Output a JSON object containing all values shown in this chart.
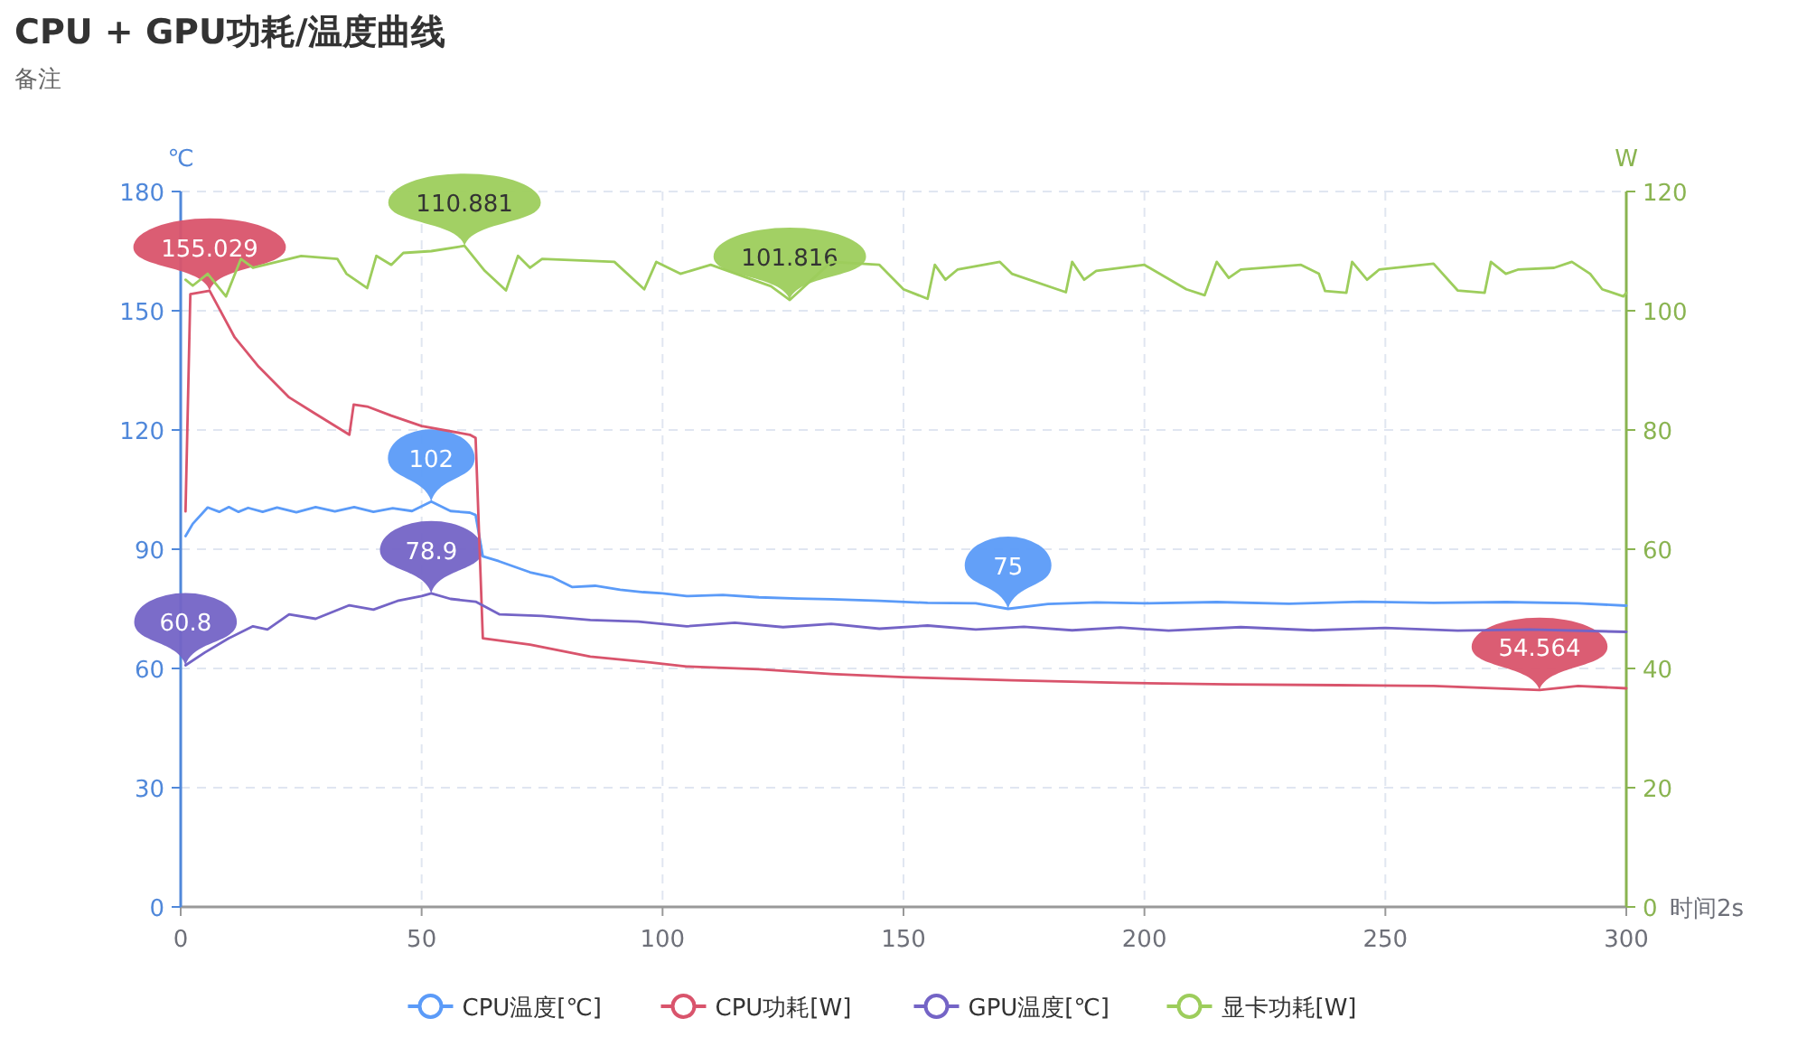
{
  "chart_data": {
    "type": "line",
    "title": "CPU + GPU功耗/温度曲线",
    "subtitle": "备注",
    "xlabel": "时间2s",
    "ylabel": "℃",
    "y2label": "W",
    "xlim": [
      0,
      300
    ],
    "xticks": [
      0,
      50,
      100,
      150,
      200,
      250,
      300
    ],
    "ylim": [
      0,
      180
    ],
    "yticks": [
      0,
      30,
      60,
      90,
      120,
      150,
      180
    ],
    "y2lim": [
      0,
      120
    ],
    "y2ticks": [
      0,
      20,
      40,
      60,
      80,
      100,
      120
    ],
    "grid": true,
    "legend": "bottom",
    "series": [
      {
        "name": "CPU温度[℃]",
        "color": "#5b9bf8",
        "axis": "y",
        "x": [
          1,
          2.5,
          5.6,
          8,
          10,
          12,
          14,
          17,
          20,
          24,
          28,
          32,
          36,
          40,
          44,
          48,
          52,
          56,
          60,
          61.2,
          62.7,
          66,
          72.5,
          77,
          81.2,
          86,
          91.2,
          96,
          100,
          105,
          112.5,
          120,
          128,
          135,
          145,
          155,
          165,
          171.7,
          180,
          190,
          200,
          215,
          230,
          245,
          260,
          275,
          290,
          300
        ],
        "values": [
          93.3,
          96.4,
          100.5,
          99.4,
          100.6,
          99.4,
          100.4,
          99.4,
          100.5,
          99.3,
          100.6,
          99.5,
          100.6,
          99.4,
          100.3,
          99.6,
          102,
          99.6,
          99.2,
          98.6,
          88.2,
          87,
          84.2,
          83,
          80.5,
          80.8,
          79.8,
          79.2,
          78.9,
          78.2,
          78.5,
          77.9,
          77.6,
          77.4,
          77,
          76.5,
          76.4,
          75,
          76.2,
          76.6,
          76.4,
          76.7,
          76.3,
          76.8,
          76.5,
          76.7,
          76.4,
          75.8
        ],
        "value_labels": [
          null,
          null,
          null,
          null,
          null,
          null,
          null,
          null,
          null,
          null,
          null,
          null,
          null,
          null,
          null,
          null,
          "102",
          null,
          null,
          null,
          null,
          null,
          null,
          null,
          null,
          null,
          null,
          null,
          null,
          null,
          null,
          null,
          null,
          null,
          null,
          null,
          null,
          "75",
          null,
          null,
          null,
          null,
          null,
          null,
          null,
          null,
          null,
          null
        ]
      },
      {
        "name": "CPU功耗[W]",
        "color": "#d9546c",
        "axis": "y",
        "x": [
          1,
          2,
          6,
          11.2,
          16.2,
          22.5,
          27.4,
          35,
          35.9,
          38.7,
          43.7,
          50,
          60,
          61.2,
          62.7,
          72.5,
          85,
          97.5,
          105,
          120,
          135,
          150,
          172.5,
          195,
          217.5,
          240,
          260,
          282,
          290,
          300
        ],
        "values": [
          99.5,
          154.2,
          155.029,
          143.3,
          135.9,
          128.2,
          124.5,
          118.8,
          126.4,
          125.9,
          123.6,
          121,
          118.8,
          118,
          67.6,
          66,
          63,
          61.5,
          60.5,
          59.8,
          58.6,
          57.8,
          57,
          56.4,
          56,
          55.8,
          55.6,
          54.564,
          55.6,
          55
        ],
        "value_labels": [
          null,
          null,
          "155.029",
          null,
          null,
          null,
          null,
          null,
          null,
          null,
          null,
          null,
          null,
          null,
          null,
          null,
          null,
          null,
          null,
          null,
          null,
          null,
          null,
          null,
          null,
          null,
          null,
          "54.564",
          null,
          null
        ]
      },
      {
        "name": "GPU温度[℃]",
        "color": "#7464c6",
        "axis": "y",
        "x": [
          1,
          5,
          10,
          15,
          18,
          22.5,
          28,
          35,
          40,
          45,
          50,
          52,
          56,
          61.2,
          66.2,
          75,
          85,
          95,
          105,
          115,
          125,
          135,
          145,
          155,
          165,
          175,
          185,
          195,
          205,
          220,
          235,
          250,
          265,
          280,
          300
        ],
        "values": [
          60.8,
          64,
          67.6,
          70.6,
          69.8,
          73.6,
          72.5,
          75.9,
          74.8,
          77,
          78.2,
          78.9,
          77.5,
          76.8,
          73.6,
          73.2,
          72.2,
          71.8,
          70.6,
          71.5,
          70.4,
          71.2,
          70,
          70.8,
          69.8,
          70.5,
          69.6,
          70.3,
          69.5,
          70.4,
          69.6,
          70.2,
          69.5,
          69.8,
          69.2
        ],
        "value_labels": [
          "60.8",
          null,
          null,
          null,
          null,
          null,
          null,
          null,
          null,
          null,
          null,
          "78.9",
          null,
          null,
          null,
          null,
          null,
          null,
          null,
          null,
          null,
          null,
          null,
          null,
          null,
          null,
          null,
          null,
          null,
          null,
          null,
          null,
          null,
          null,
          null
        ]
      },
      {
        "name": "显卡功耗[W]",
        "color": "#9dcd5c",
        "axis": "y2",
        "x": [
          1,
          2.5,
          5.6,
          9.4,
          12.5,
          15,
          25,
          32.5,
          34.4,
          38.7,
          40.6,
          43.7,
          46.2,
          52,
          58.9,
          63.1,
          67.5,
          70,
          72.5,
          75,
          90,
          96.2,
          98.7,
          103.7,
          110,
          122.5,
          126.4,
          135,
          145,
          150,
          155,
          156.5,
          158.7,
          161.2,
          170,
          172.5,
          183.7,
          185,
          187.5,
          190,
          200,
          208.7,
          212.5,
          215,
          217.5,
          220,
          232.5,
          236.2,
          237.5,
          241.9,
          243.1,
          246.2,
          248.7,
          260,
          265,
          270.6,
          271.9,
          275,
          277.5,
          285,
          288.7,
          292.5,
          295,
          299.4,
          300
        ],
        "values": [
          105.2,
          104.2,
          106.2,
          102.4,
          108.7,
          107.2,
          109.2,
          108.7,
          106.2,
          103.8,
          109.2,
          107.7,
          109.7,
          110,
          110.881,
          106.7,
          103.4,
          109.2,
          107.2,
          108.7,
          108.2,
          103.6,
          108.2,
          106.2,
          107.7,
          104.1,
          101.816,
          108.2,
          107.7,
          103.6,
          102,
          107.7,
          105.2,
          106.9,
          108.2,
          106.2,
          103.1,
          108.2,
          105.2,
          106.7,
          107.7,
          103.6,
          102.6,
          108.2,
          105.5,
          106.9,
          107.7,
          106.2,
          103.3,
          103,
          108.2,
          105.2,
          106.9,
          107.9,
          103.4,
          103,
          108.2,
          106.2,
          106.9,
          107.2,
          108.2,
          106.2,
          103.6,
          102.4,
          103
        ],
        "value_labels": [
          null,
          null,
          null,
          null,
          null,
          null,
          null,
          null,
          null,
          null,
          null,
          null,
          null,
          null,
          "110.881",
          null,
          null,
          null,
          null,
          null,
          null,
          null,
          null,
          null,
          null,
          null,
          "101.816",
          null,
          null,
          null,
          null,
          null,
          null,
          null,
          null,
          null,
          null,
          null,
          null,
          null,
          null,
          null,
          null,
          null,
          null,
          null,
          null,
          null,
          null,
          null,
          null,
          null,
          null,
          null,
          null,
          null,
          null,
          null,
          null,
          null,
          null,
          null,
          null,
          null,
          null
        ]
      }
    ]
  }
}
